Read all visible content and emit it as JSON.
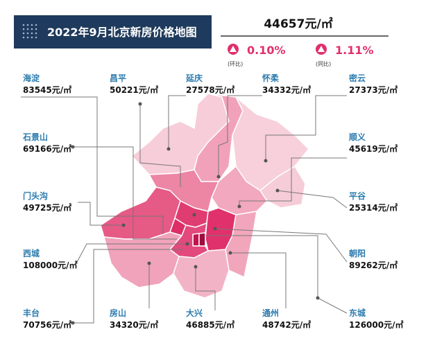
{
  "header": {
    "title": "2022年9月北京新房价格地图",
    "average_price": "44657元/㎡",
    "changes": [
      {
        "value": "0.10%",
        "label": "(环比)"
      },
      {
        "value": "1.11%",
        "label": "(同比)"
      }
    ]
  },
  "districts": [
    {
      "name": "海淀",
      "price": "83545元/㎡"
    },
    {
      "name": "昌平",
      "price": "50221元/㎡"
    },
    {
      "name": "延庆",
      "price": "27578元/㎡"
    },
    {
      "name": "怀柔",
      "price": "34332元/㎡"
    },
    {
      "name": "密云",
      "price": "27373元/㎡"
    },
    {
      "name": "石景山",
      "price": "69166元/㎡"
    },
    {
      "name": "顺义",
      "price": "45619元/㎡"
    },
    {
      "name": "门头沟",
      "price": "49725元/㎡"
    },
    {
      "name": "平谷",
      "price": "25314元/㎡"
    },
    {
      "name": "西城",
      "price": "108000元/㎡"
    },
    {
      "name": "朝阳",
      "price": "89262元/㎡"
    },
    {
      "name": "丰台",
      "price": "70756元/㎡"
    },
    {
      "name": "房山",
      "price": "34320元/㎡"
    },
    {
      "name": "大兴",
      "price": "46885元/㎡"
    },
    {
      "name": "通州",
      "price": "48742元/㎡"
    },
    {
      "name": "东城",
      "price": "126000元/㎡"
    }
  ]
}
